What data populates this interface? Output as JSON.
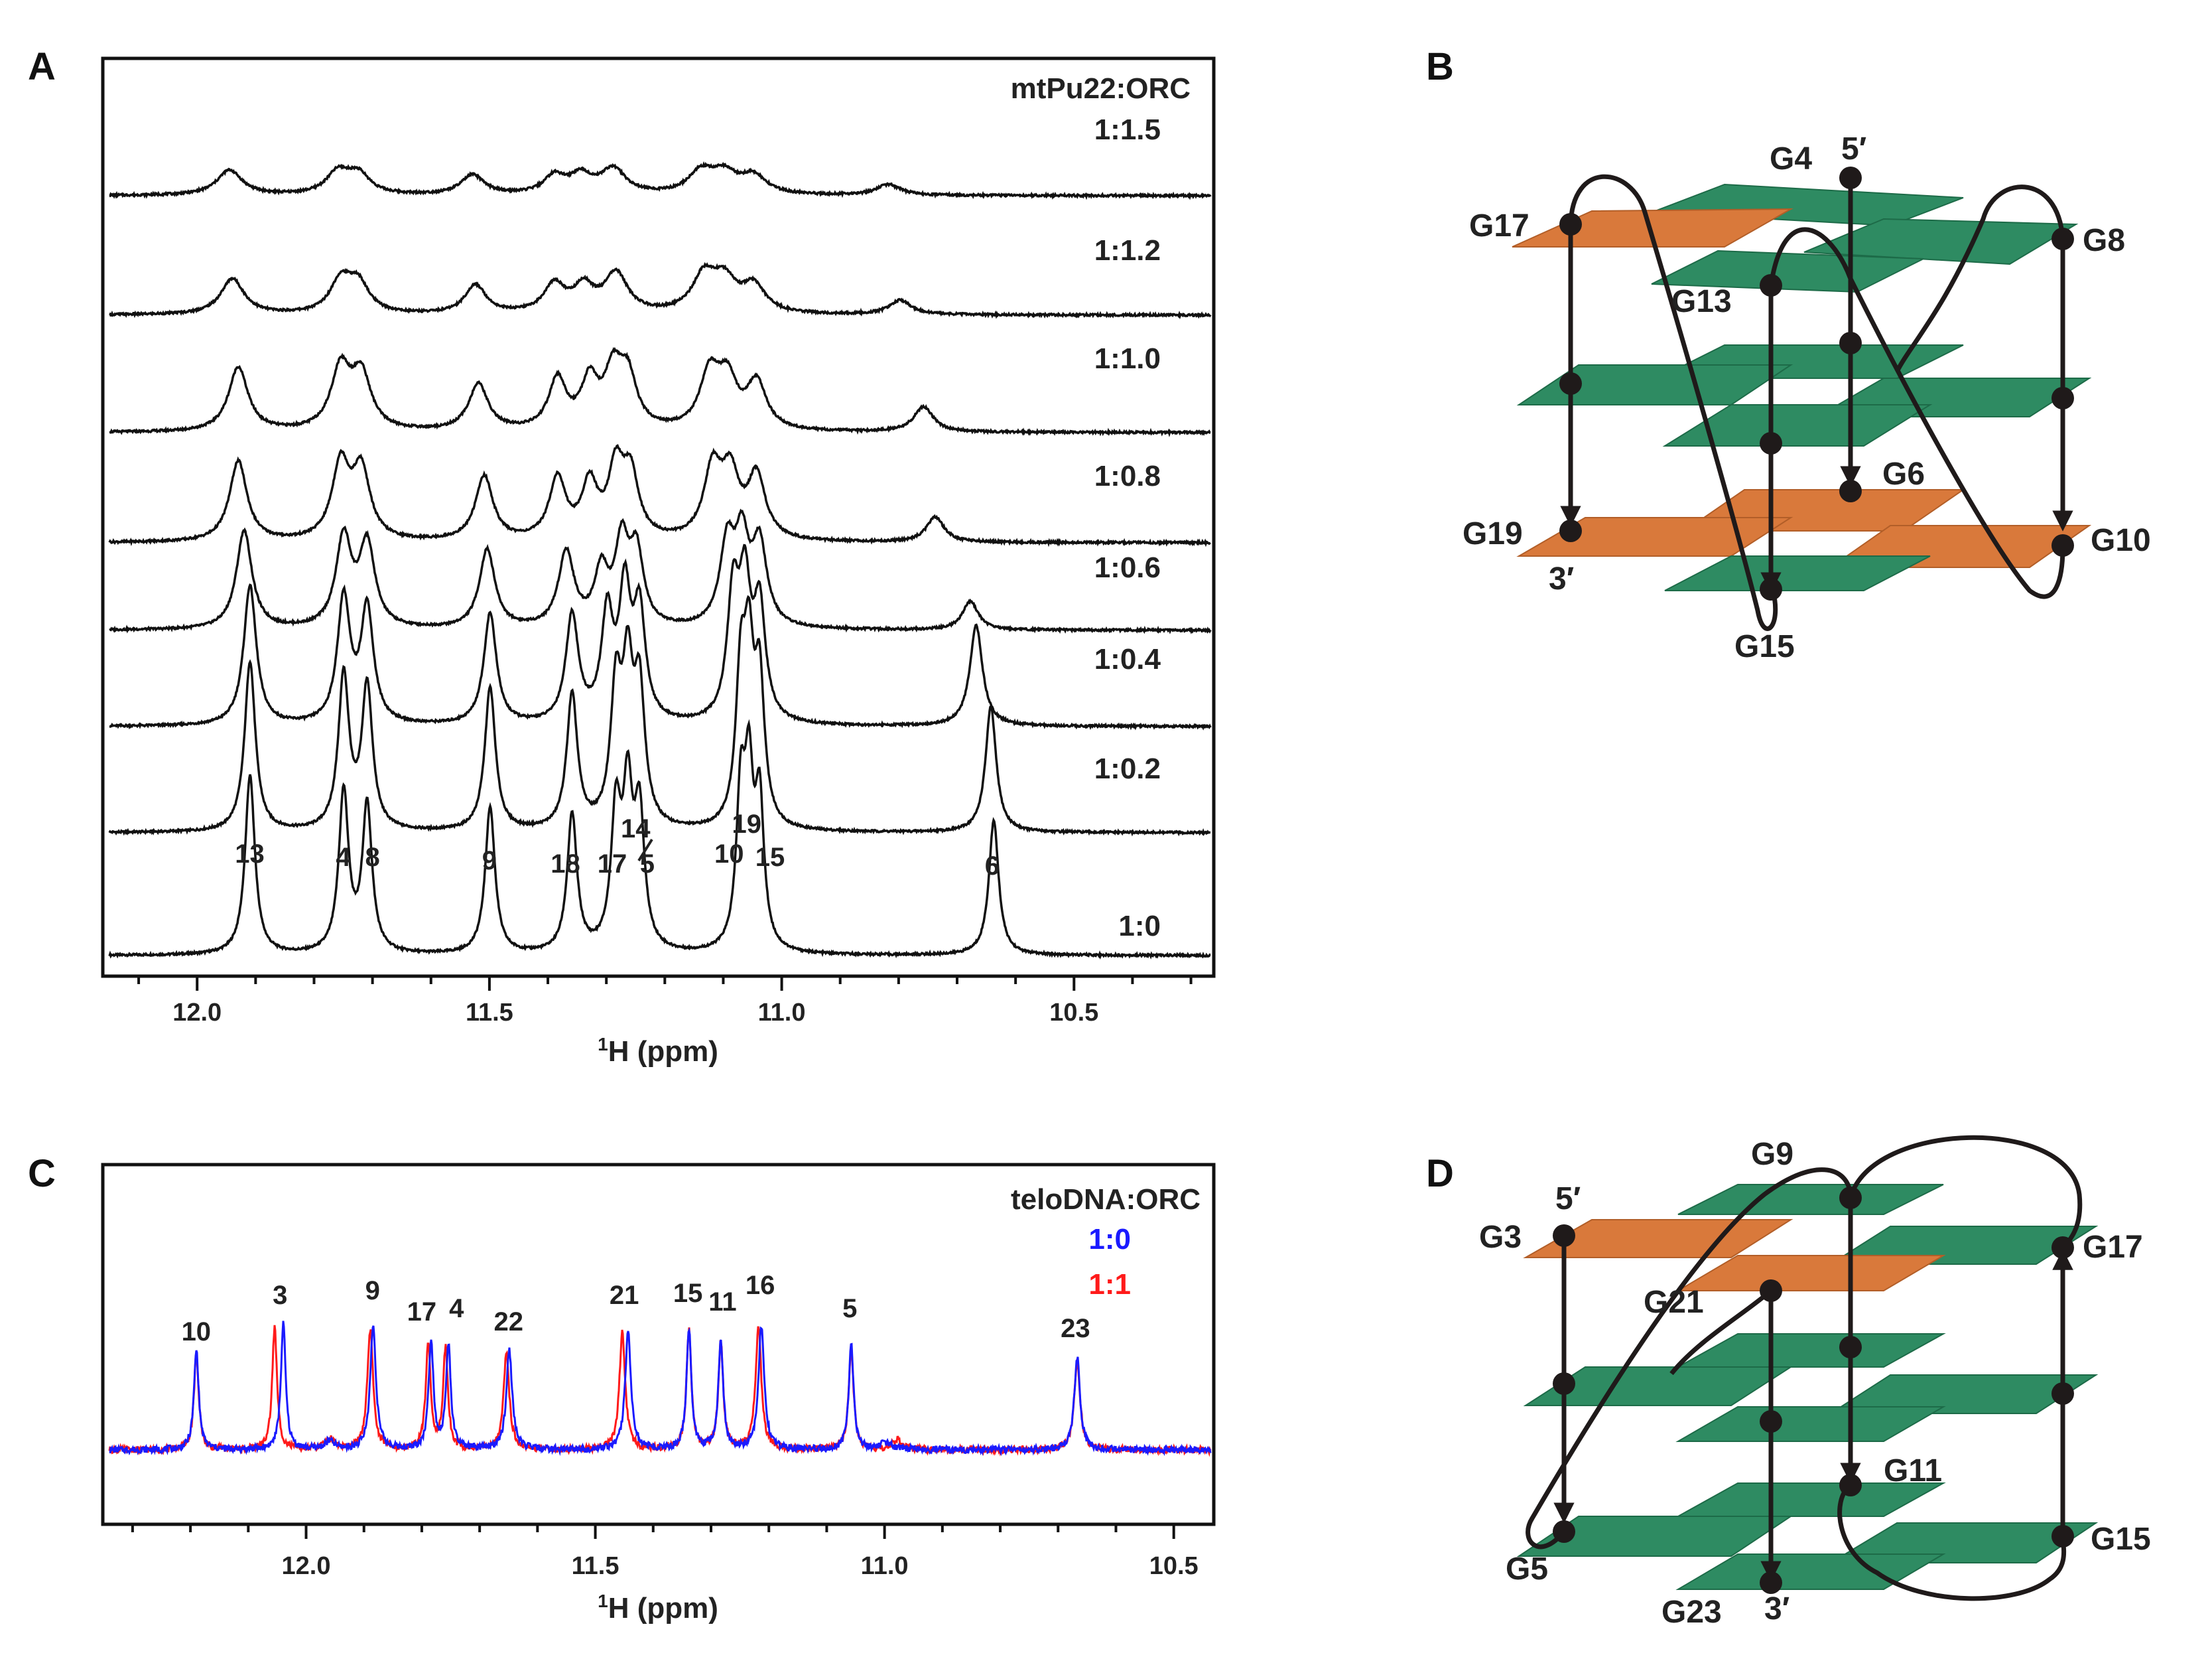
{
  "panels": {
    "a": {
      "label": "A"
    },
    "b": {
      "label": "B"
    },
    "c": {
      "label": "C"
    },
    "d": {
      "label": "D"
    }
  },
  "chart_data": [
    {
      "id": "A",
      "type": "line",
      "title": "mtPu22:ORC",
      "xlabel_sup": "1",
      "xlabel": "H (ppm)",
      "xlim": [
        12.15,
        10.27
      ],
      "xticks": [
        12.0,
        11.5,
        11.0,
        10.5
      ],
      "xtick_labels": [
        "12.0",
        "11.5",
        "11.0",
        "10.5"
      ],
      "series": [
        {
          "name": "1:0",
          "peaks": [
            [
              11.91,
              1.0,
              0.01
            ],
            [
              11.75,
              0.9,
              0.01
            ],
            [
              11.71,
              0.82,
              0.01
            ],
            [
              11.5,
              0.82,
              0.01
            ],
            [
              11.36,
              0.77,
              0.01
            ],
            [
              11.285,
              0.75,
              0.01
            ],
            [
              11.265,
              0.83,
              0.01
            ],
            [
              11.245,
              0.74,
              0.01
            ],
            [
              11.072,
              0.82,
              0.009
            ],
            [
              11.058,
              0.88,
              0.009
            ],
            [
              11.04,
              0.8,
              0.009
            ],
            [
              10.64,
              0.75,
              0.01
            ]
          ]
        },
        {
          "name": "1:0.2",
          "peaks": [
            [
              11.91,
              0.95,
              0.011
            ],
            [
              11.75,
              0.86,
              0.011
            ],
            [
              11.71,
              0.8,
              0.011
            ],
            [
              11.5,
              0.8,
              0.011
            ],
            [
              11.36,
              0.75,
              0.011
            ],
            [
              11.285,
              0.74,
              0.011
            ],
            [
              11.265,
              0.8,
              0.011
            ],
            [
              11.245,
              0.73,
              0.011
            ],
            [
              11.072,
              0.8,
              0.01
            ],
            [
              11.058,
              0.85,
              0.01
            ],
            [
              11.04,
              0.78,
              0.01
            ],
            [
              10.645,
              0.7,
              0.011
            ]
          ]
        },
        {
          "name": "1:0.4",
          "peaks": [
            [
              11.91,
              0.78,
              0.013
            ],
            [
              11.75,
              0.7,
              0.013
            ],
            [
              11.71,
              0.64,
              0.013
            ],
            [
              11.5,
              0.62,
              0.013
            ],
            [
              11.36,
              0.6,
              0.013
            ],
            [
              11.3,
              0.58,
              0.012
            ],
            [
              11.27,
              0.7,
              0.012
            ],
            [
              11.245,
              0.6,
              0.012
            ],
            [
              11.085,
              0.68,
              0.012
            ],
            [
              11.065,
              0.7,
              0.012
            ],
            [
              11.04,
              0.62,
              0.012
            ],
            [
              10.67,
              0.56,
              0.013
            ]
          ]
        },
        {
          "name": "1:0.6",
          "peaks": [
            [
              11.92,
              0.55,
              0.016
            ],
            [
              11.75,
              0.5,
              0.016
            ],
            [
              11.71,
              0.46,
              0.016
            ],
            [
              11.505,
              0.44,
              0.016
            ],
            [
              11.37,
              0.42,
              0.016
            ],
            [
              11.31,
              0.3,
              0.014
            ],
            [
              11.275,
              0.45,
              0.014
            ],
            [
              11.25,
              0.4,
              0.014
            ],
            [
              11.095,
              0.45,
              0.015
            ],
            [
              11.07,
              0.45,
              0.014
            ],
            [
              11.04,
              0.45,
              0.015
            ],
            [
              10.68,
              0.16,
              0.016
            ]
          ]
        },
        {
          "name": "1:0.8",
          "peaks": [
            [
              11.93,
              0.45,
              0.018
            ],
            [
              11.755,
              0.42,
              0.018
            ],
            [
              11.72,
              0.38,
              0.018
            ],
            [
              11.51,
              0.36,
              0.018
            ],
            [
              11.385,
              0.34,
              0.017
            ],
            [
              11.33,
              0.3,
              0.016
            ],
            [
              11.285,
              0.38,
              0.016
            ],
            [
              11.26,
              0.34,
              0.016
            ],
            [
              11.12,
              0.38,
              0.018
            ],
            [
              11.09,
              0.34,
              0.018
            ],
            [
              11.045,
              0.35,
              0.018
            ],
            [
              10.74,
              0.14,
              0.018
            ]
          ]
        },
        {
          "name": "1:1.0",
          "peaks": [
            [
              11.93,
              0.36,
              0.02
            ],
            [
              11.755,
              0.34,
              0.02
            ],
            [
              11.72,
              0.3,
              0.02
            ],
            [
              11.52,
              0.26,
              0.02
            ],
            [
              11.385,
              0.28,
              0.018
            ],
            [
              11.33,
              0.26,
              0.017
            ],
            [
              11.29,
              0.3,
              0.018
            ],
            [
              11.265,
              0.28,
              0.018
            ],
            [
              11.125,
              0.3,
              0.02
            ],
            [
              11.095,
              0.26,
              0.02
            ],
            [
              11.045,
              0.26,
              0.02
            ],
            [
              10.76,
              0.14,
              0.02
            ]
          ]
        },
        {
          "name": "1:1.2",
          "peaks": [
            [
              11.94,
              0.2,
              0.024
            ],
            [
              11.755,
              0.18,
              0.022
            ],
            [
              11.725,
              0.16,
              0.022
            ],
            [
              11.525,
              0.16,
              0.022
            ],
            [
              11.39,
              0.16,
              0.022
            ],
            [
              11.34,
              0.14,
              0.02
            ],
            [
              11.285,
              0.22,
              0.024
            ],
            [
              11.135,
              0.2,
              0.024
            ],
            [
              11.1,
              0.17,
              0.024
            ],
            [
              11.05,
              0.15,
              0.024
            ],
            [
              10.8,
              0.08,
              0.022
            ]
          ]
        },
        {
          "name": "1:1.5",
          "peaks": [
            [
              11.945,
              0.14,
              0.026
            ],
            [
              11.76,
              0.12,
              0.024
            ],
            [
              11.725,
              0.11,
              0.024
            ],
            [
              11.53,
              0.11,
              0.024
            ],
            [
              11.39,
              0.1,
              0.022
            ],
            [
              11.345,
              0.1,
              0.022
            ],
            [
              11.29,
              0.14,
              0.026
            ],
            [
              11.14,
              0.12,
              0.026
            ],
            [
              11.1,
              0.11,
              0.026
            ],
            [
              11.05,
              0.1,
              0.026
            ],
            [
              10.82,
              0.06,
              0.024
            ]
          ]
        }
      ],
      "peak_labels": [
        {
          "text": "13",
          "ppm": 11.91
        },
        {
          "text": "4",
          "ppm": 11.75
        },
        {
          "text": "8",
          "ppm": 11.7
        },
        {
          "text": "9",
          "ppm": 11.5
        },
        {
          "text": "18",
          "ppm": 11.37
        },
        {
          "text": "17",
          "ppm": 11.29
        },
        {
          "text": "14",
          "ppm": 11.25
        },
        {
          "text": "5",
          "ppm": 11.23
        },
        {
          "text": "10",
          "ppm": 11.09
        },
        {
          "text": "19",
          "ppm": 11.06
        },
        {
          "text": "15",
          "ppm": 11.02
        },
        {
          "text": "6",
          "ppm": 10.64
        }
      ]
    },
    {
      "id": "C",
      "type": "line",
      "title": "teloDNA:ORC",
      "xlabel_sup": "1",
      "xlabel": "H (ppm)",
      "xlim": [
        12.34,
        10.44
      ],
      "xticks": [
        12.0,
        11.5,
        11.0,
        10.5
      ],
      "xtick_labels": [
        "12.0",
        "11.5",
        "11.0",
        "10.5"
      ],
      "series": [
        {
          "name": "1:0",
          "color": "#1a1aff",
          "peaks": [
            [
              12.19,
              0.75,
              0.005
            ],
            [
              12.04,
              0.95,
              0.005
            ],
            [
              11.885,
              0.93,
              0.006
            ],
            [
              11.785,
              0.82,
              0.005
            ],
            [
              11.755,
              0.78,
              0.005
            ],
            [
              11.65,
              0.75,
              0.006
            ],
            [
              11.445,
              0.89,
              0.006
            ],
            [
              11.34,
              0.91,
              0.005
            ],
            [
              11.285,
              0.82,
              0.005
            ],
            [
              11.215,
              0.93,
              0.006
            ],
            [
              11.06,
              0.8,
              0.005
            ],
            [
              10.67,
              0.7,
              0.006
            ],
            [
              11.96,
              0.06,
              0.01
            ],
            [
              11.0,
              0.05,
              0.012
            ]
          ]
        },
        {
          "name": "1:1",
          "color": "#ff1a1a",
          "peaks": [
            [
              12.19,
              0.72,
              0.005
            ],
            [
              12.055,
              0.92,
              0.005
            ],
            [
              11.89,
              0.9,
              0.006
            ],
            [
              11.79,
              0.8,
              0.005
            ],
            [
              11.76,
              0.76,
              0.005
            ],
            [
              11.655,
              0.73,
              0.006
            ],
            [
              11.455,
              0.88,
              0.006
            ],
            [
              11.34,
              0.9,
              0.005
            ],
            [
              11.285,
              0.8,
              0.005
            ],
            [
              11.22,
              0.92,
              0.006
            ],
            [
              11.06,
              0.78,
              0.005
            ],
            [
              10.67,
              0.68,
              0.006
            ],
            [
              11.96,
              0.08,
              0.01
            ],
            [
              10.98,
              0.07,
              0.012
            ]
          ]
        }
      ],
      "peak_labels": [
        {
          "text": "10",
          "ppm": 12.19
        },
        {
          "text": "3",
          "ppm": 12.045
        },
        {
          "text": "9",
          "ppm": 11.885
        },
        {
          "text": "17",
          "ppm": 11.8
        },
        {
          "text": "4",
          "ppm": 11.74
        },
        {
          "text": "22",
          "ppm": 11.65
        },
        {
          "text": "21",
          "ppm": 11.45
        },
        {
          "text": "15",
          "ppm": 11.34
        },
        {
          "text": "11",
          "ppm": 11.28
        },
        {
          "text": "16",
          "ppm": 11.215
        },
        {
          "text": "5",
          "ppm": 11.06
        },
        {
          "text": "23",
          "ppm": 10.67
        }
      ]
    }
  ],
  "diagram_b": {
    "labels": [
      "G4",
      "5′",
      "G17",
      "G8",
      "G13",
      "G6",
      "G19",
      "3′",
      "G10",
      "G15"
    ],
    "colors": {
      "green": "#2e8b62",
      "orange": "#d9793b",
      "line": "#1f1a1a"
    }
  },
  "diagram_d": {
    "labels": [
      "G9",
      "5′",
      "G3",
      "G17",
      "G21",
      "G11",
      "G5",
      "G15",
      "G23",
      "3′"
    ],
    "colors": {
      "green": "#2e8b62",
      "orange": "#d9793b",
      "line": "#1f1a1a"
    }
  }
}
